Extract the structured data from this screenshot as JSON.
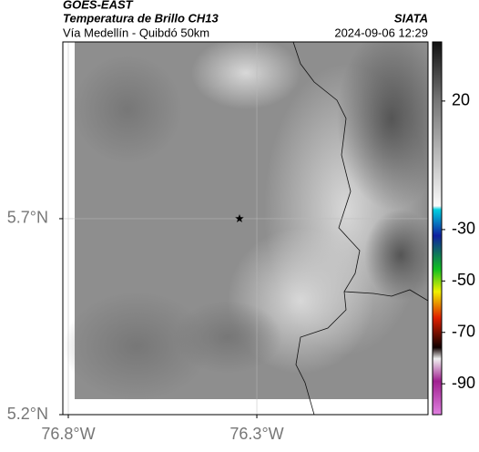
{
  "header": {
    "satellite": "GOES-EAST",
    "product": "Temperatura de Brillo CH13",
    "source": "SIATA",
    "route": "Vía Medellín - Quibdó 50km",
    "datetime": "2024-09-06 12:29"
  },
  "map": {
    "xlim": [
      -76.8145,
      -75.846
    ],
    "ylim": [
      5.2,
      6.151
    ],
    "xticks": [
      {
        "value": -76.8,
        "label": "76.8°W"
      },
      {
        "value": -76.3,
        "label": "76.3°W"
      }
    ],
    "yticks": [
      {
        "value": 5.7,
        "label": "5.7°N"
      },
      {
        "value": 5.2,
        "label": "5.2°N"
      }
    ],
    "grid": true,
    "marker": {
      "lon": -76.346,
      "lat": 5.7
    }
  },
  "colorbar": {
    "lim": [
      -102,
      43
    ],
    "ticks": [
      20,
      -30,
      -50,
      -70,
      -90
    ]
  }
}
